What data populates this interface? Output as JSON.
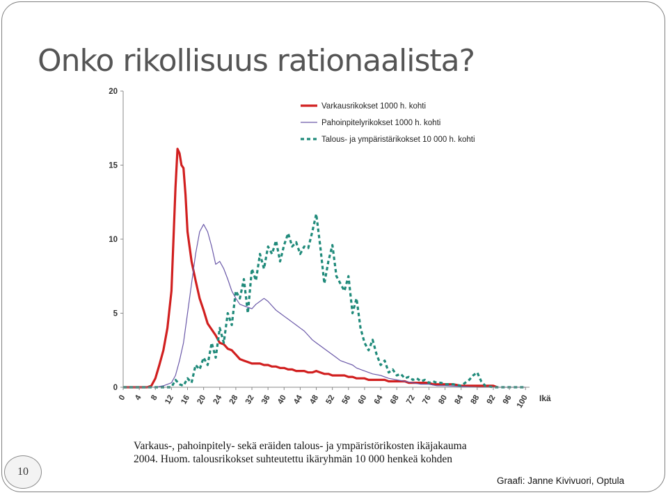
{
  "slide": {
    "title": "Onko rikollisuus rationaalista?",
    "caption_line1": "Varkaus-, pahoinpitely- sekä eräiden talous- ja ympäristörikosten ikäjakauma",
    "caption_line2": "2004. Huom. talousrikokset suhteutettu ikäryhmän 10 000 henkeä kohden",
    "page_number": "10",
    "credit": "Graafi: Janne Kivivuori, Optula"
  },
  "chart_data": {
    "type": "line",
    "title": "",
    "xlabel": "Ikä",
    "ylabel": "",
    "xlim": [
      0,
      101
    ],
    "ylim": [
      0,
      20
    ],
    "x_ticks": [
      0,
      4,
      8,
      12,
      16,
      20,
      24,
      28,
      32,
      36,
      40,
      44,
      48,
      52,
      56,
      60,
      64,
      68,
      72,
      76,
      80,
      84,
      88,
      92,
      96,
      100
    ],
    "y_ticks": [
      0,
      5,
      10,
      15,
      20
    ],
    "grid": false,
    "legend_position": "top-right",
    "series": [
      {
        "name": "Varkausrikokset 1000 h. kohti",
        "color": "#d11f1f",
        "style": "solid-thick",
        "points": [
          [
            0,
            0
          ],
          [
            6,
            0
          ],
          [
            7,
            0.1
          ],
          [
            8,
            0.6
          ],
          [
            9,
            1.5
          ],
          [
            10,
            2.5
          ],
          [
            11,
            4.0
          ],
          [
            12,
            6.5
          ],
          [
            12.5,
            10
          ],
          [
            13,
            13.5
          ],
          [
            13.5,
            16.1
          ],
          [
            14,
            15.8
          ],
          [
            14.5,
            15.0
          ],
          [
            15,
            14.8
          ],
          [
            15.5,
            13
          ],
          [
            16,
            10.5
          ],
          [
            17,
            8.5
          ],
          [
            18,
            7.2
          ],
          [
            19,
            6.0
          ],
          [
            20,
            5.2
          ],
          [
            21,
            4.3
          ],
          [
            22,
            3.9
          ],
          [
            23,
            3.5
          ],
          [
            24,
            3.0
          ],
          [
            25,
            2.9
          ],
          [
            26,
            2.6
          ],
          [
            27,
            2.5
          ],
          [
            28,
            2.2
          ],
          [
            29,
            1.9
          ],
          [
            30,
            1.8
          ],
          [
            31,
            1.7
          ],
          [
            32,
            1.6
          ],
          [
            33,
            1.6
          ],
          [
            34,
            1.6
          ],
          [
            35,
            1.5
          ],
          [
            36,
            1.5
          ],
          [
            37,
            1.4
          ],
          [
            38,
            1.4
          ],
          [
            39,
            1.3
          ],
          [
            40,
            1.3
          ],
          [
            41,
            1.2
          ],
          [
            42,
            1.2
          ],
          [
            43,
            1.1
          ],
          [
            44,
            1.1
          ],
          [
            45,
            1.1
          ],
          [
            46,
            1.0
          ],
          [
            47,
            1.0
          ],
          [
            48,
            1.1
          ],
          [
            49,
            1.0
          ],
          [
            50,
            0.9
          ],
          [
            51,
            0.9
          ],
          [
            52,
            0.8
          ],
          [
            53,
            0.8
          ],
          [
            54,
            0.8
          ],
          [
            55,
            0.8
          ],
          [
            56,
            0.7
          ],
          [
            57,
            0.7
          ],
          [
            58,
            0.6
          ],
          [
            59,
            0.6
          ],
          [
            60,
            0.6
          ],
          [
            61,
            0.5
          ],
          [
            62,
            0.5
          ],
          [
            63,
            0.5
          ],
          [
            64,
            0.5
          ],
          [
            65,
            0.5
          ],
          [
            66,
            0.4
          ],
          [
            67,
            0.4
          ],
          [
            68,
            0.4
          ],
          [
            69,
            0.4
          ],
          [
            70,
            0.4
          ],
          [
            71,
            0.3
          ],
          [
            72,
            0.3
          ],
          [
            73,
            0.3
          ],
          [
            74,
            0.3
          ],
          [
            75,
            0.3
          ],
          [
            76,
            0.3
          ],
          [
            77,
            0.2
          ],
          [
            78,
            0.2
          ],
          [
            79,
            0.2
          ],
          [
            80,
            0.2
          ],
          [
            81,
            0.2
          ],
          [
            82,
            0.2
          ],
          [
            84,
            0.1
          ],
          [
            86,
            0.1
          ],
          [
            88,
            0.1
          ],
          [
            90,
            0.1
          ],
          [
            92,
            0.1
          ],
          [
            93,
            0
          ]
        ]
      },
      {
        "name": "Pahoinpitelyrikokset 1000 h. kohti",
        "color": "#6a58a8",
        "style": "solid-thin",
        "points": [
          [
            0,
            0
          ],
          [
            8,
            0
          ],
          [
            10,
            0.1
          ],
          [
            12,
            0.3
          ],
          [
            13,
            0.8
          ],
          [
            14,
            1.8
          ],
          [
            15,
            3.0
          ],
          [
            16,
            5.0
          ],
          [
            17,
            7.0
          ],
          [
            18,
            9.0
          ],
          [
            19,
            10.5
          ],
          [
            20,
            11.0
          ],
          [
            21,
            10.5
          ],
          [
            22,
            9.5
          ],
          [
            23,
            8.3
          ],
          [
            24,
            8.5
          ],
          [
            25,
            8.0
          ],
          [
            26,
            7.3
          ],
          [
            27,
            6.5
          ],
          [
            28,
            6.0
          ],
          [
            29,
            5.6
          ],
          [
            30,
            5.5
          ],
          [
            31,
            5.4
          ],
          [
            32,
            5.3
          ],
          [
            33,
            5.6
          ],
          [
            34,
            5.8
          ],
          [
            35,
            6.0
          ],
          [
            36,
            5.8
          ],
          [
            37,
            5.5
          ],
          [
            38,
            5.2
          ],
          [
            39,
            5.0
          ],
          [
            40,
            4.8
          ],
          [
            41,
            4.6
          ],
          [
            42,
            4.4
          ],
          [
            43,
            4.2
          ],
          [
            44,
            4.0
          ],
          [
            45,
            3.8
          ],
          [
            46,
            3.5
          ],
          [
            47,
            3.2
          ],
          [
            48,
            3.0
          ],
          [
            49,
            2.8
          ],
          [
            50,
            2.6
          ],
          [
            51,
            2.4
          ],
          [
            52,
            2.2
          ],
          [
            53,
            2.0
          ],
          [
            54,
            1.8
          ],
          [
            55,
            1.7
          ],
          [
            56,
            1.6
          ],
          [
            57,
            1.5
          ],
          [
            58,
            1.3
          ],
          [
            59,
            1.2
          ],
          [
            60,
            1.1
          ],
          [
            62,
            0.9
          ],
          [
            64,
            0.8
          ],
          [
            66,
            0.6
          ],
          [
            68,
            0.5
          ],
          [
            70,
            0.4
          ],
          [
            72,
            0.3
          ],
          [
            74,
            0.2
          ],
          [
            76,
            0.2
          ],
          [
            78,
            0.1
          ],
          [
            80,
            0.1
          ],
          [
            84,
            0.05
          ],
          [
            88,
            0
          ],
          [
            100,
            0
          ]
        ]
      },
      {
        "name": "Talous- ja ympäristärikokset 10 000 h. kohti",
        "color": "#1f8a7a",
        "style": "dashed",
        "points": [
          [
            0,
            0
          ],
          [
            12,
            0
          ],
          [
            13,
            0.5
          ],
          [
            14,
            0.2
          ],
          [
            15,
            0.1
          ],
          [
            16,
            0.6
          ],
          [
            17,
            0.3
          ],
          [
            18,
            1.5
          ],
          [
            19,
            1.2
          ],
          [
            20,
            2.0
          ],
          [
            21,
            1.5
          ],
          [
            22,
            3.0
          ],
          [
            23,
            2.0
          ],
          [
            24,
            4.0
          ],
          [
            25,
            3.0
          ],
          [
            26,
            5.0
          ],
          [
            27,
            4.2
          ],
          [
            28,
            6.5
          ],
          [
            29,
            6.0
          ],
          [
            30,
            7.3
          ],
          [
            31,
            5.0
          ],
          [
            32,
            8.0
          ],
          [
            33,
            7.2
          ],
          [
            34,
            9.0
          ],
          [
            35,
            8.0
          ],
          [
            36,
            9.5
          ],
          [
            37,
            9.0
          ],
          [
            38,
            9.9
          ],
          [
            39,
            8.5
          ],
          [
            40,
            9.6
          ],
          [
            41,
            10.4
          ],
          [
            42,
            9.5
          ],
          [
            43,
            9.8
          ],
          [
            44,
            9.0
          ],
          [
            45,
            9.5
          ],
          [
            46,
            9.4
          ],
          [
            47,
            10.5
          ],
          [
            48,
            11.7
          ],
          [
            49,
            9.5
          ],
          [
            50,
            7.0
          ],
          [
            51,
            8.5
          ],
          [
            52,
            9.6
          ],
          [
            53,
            7.5
          ],
          [
            54,
            7.0
          ],
          [
            55,
            6.5
          ],
          [
            56,
            7.5
          ],
          [
            57,
            5.0
          ],
          [
            58,
            6.0
          ],
          [
            59,
            4.0
          ],
          [
            60,
            3.0
          ],
          [
            61,
            2.5
          ],
          [
            62,
            3.2
          ],
          [
            63,
            2.2
          ],
          [
            64,
            1.5
          ],
          [
            65,
            1.8
          ],
          [
            66,
            1.0
          ],
          [
            67,
            1.2
          ],
          [
            68,
            0.8
          ],
          [
            69,
            0.9
          ],
          [
            70,
            0.6
          ],
          [
            71,
            0.7
          ],
          [
            72,
            0.5
          ],
          [
            73,
            0.6
          ],
          [
            74,
            0.4
          ],
          [
            75,
            0.5
          ],
          [
            76,
            0.3
          ],
          [
            77,
            0.4
          ],
          [
            78,
            0.3
          ],
          [
            79,
            0.3
          ],
          [
            80,
            0.2
          ],
          [
            82,
            0.2
          ],
          [
            84,
            0.1
          ],
          [
            86,
            0.5
          ],
          [
            87,
            0.8
          ],
          [
            88,
            1.0
          ],
          [
            89,
            0.4
          ],
          [
            90,
            0.1
          ],
          [
            92,
            0
          ],
          [
            100,
            0
          ]
        ]
      }
    ]
  }
}
